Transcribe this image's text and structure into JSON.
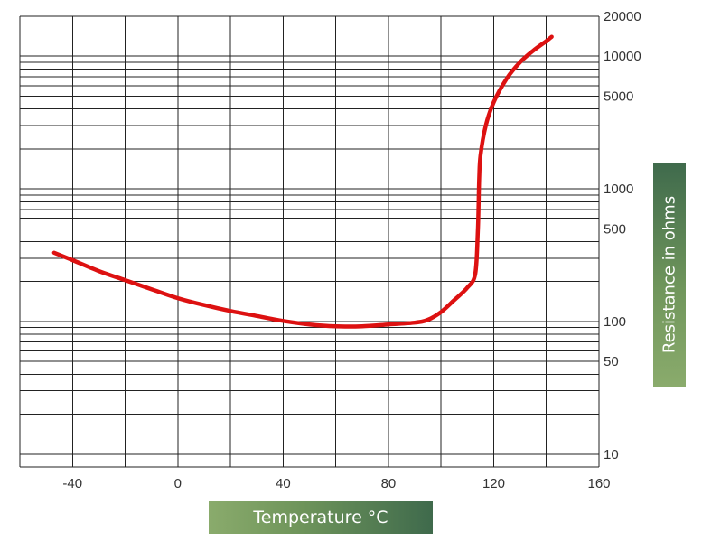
{
  "chart_data": {
    "type": "line",
    "xlabel": "Temperature °C",
    "ylabel": "Resistance in ohms",
    "xlim": [
      -60,
      160
    ],
    "ylim": [
      8,
      20000
    ],
    "yscale": "log",
    "grid": true,
    "x_ticks": [
      -40,
      0,
      40,
      80,
      120,
      160
    ],
    "y_ticks": [
      10,
      50,
      100,
      500,
      1000,
      5000,
      10000,
      20000
    ],
    "line_color": "#dd1111",
    "series": [
      {
        "x": [
          -47,
          -40,
          -30,
          -20,
          -10,
          0,
          10,
          20,
          30,
          40,
          50,
          60,
          70,
          80,
          90,
          95,
          100,
          105,
          110,
          113,
          114,
          114.5,
          115,
          117,
          120,
          125,
          130,
          135,
          140,
          142
        ],
        "y": [
          330,
          290,
          240,
          205,
          175,
          150,
          133,
          120,
          110,
          101,
          95,
          92,
          92,
          95,
          98,
          103,
          118,
          145,
          180,
          230,
          500,
          1200,
          1800,
          3000,
          4500,
          6800,
          9000,
          11000,
          13000,
          14000
        ]
      }
    ]
  }
}
